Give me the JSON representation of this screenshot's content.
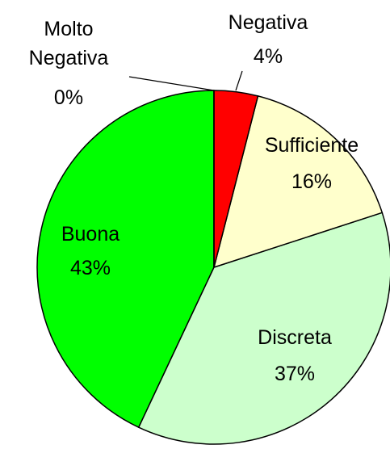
{
  "chart_data": {
    "type": "pie",
    "categories": [
      "Molto Negativa",
      "Negativa",
      "Sufficiente",
      "Discreta",
      "Buona"
    ],
    "values": [
      0,
      4,
      16,
      37,
      43
    ],
    "value_labels": [
      "0%",
      "4%",
      "16%",
      "37%",
      "43%"
    ],
    "colors": [
      "#800000",
      "#ff0000",
      "#ffffcc",
      "#ccffcc",
      "#00ff00"
    ]
  }
}
